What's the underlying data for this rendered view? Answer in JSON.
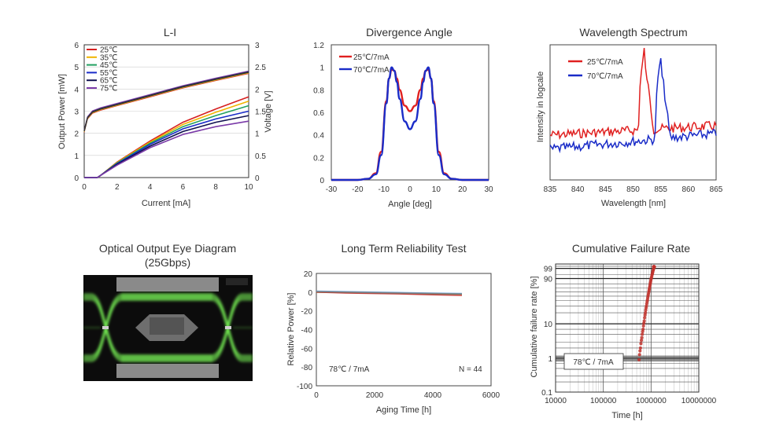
{
  "charts": {
    "li": {
      "title": "L-I",
      "xlabel": "Current [mA]",
      "ylabel_left": "Output Power [mW]",
      "ylabel_right": "Voltage [V]",
      "x_ticks": [
        "0",
        "2",
        "4",
        "6",
        "8",
        "10"
      ],
      "yl_ticks": [
        "0",
        "1",
        "2",
        "3",
        "4",
        "5",
        "6"
      ],
      "yr_ticks": [
        "0",
        "0.5",
        "1",
        "1.5",
        "2",
        "2.5",
        "3"
      ],
      "legend": [
        "25℃",
        "35℃",
        "45℃",
        "55℃",
        "65℃",
        "75℃"
      ]
    },
    "div": {
      "title": "Divergence Angle",
      "xlabel": "Angle [deg]",
      "x_ticks": [
        "-30",
        "-20",
        "-10",
        "0",
        "10",
        "20",
        "30"
      ],
      "y_ticks": [
        "0",
        "0.2",
        "0.4",
        "0.6",
        "0.8",
        "1",
        "1.2"
      ],
      "legend": [
        "25℃/7mA",
        "70℃/7mA"
      ]
    },
    "wl": {
      "title": "Wavelength Spectrum",
      "xlabel": "Wavelength [nm]",
      "ylabel": "Intensity in logcale",
      "x_ticks": [
        "835",
        "840",
        "845",
        "850",
        "855",
        "860",
        "865"
      ],
      "legend": [
        "25℃/7mA",
        "70℃/7mA"
      ]
    },
    "eye": {
      "title_line1": "Optical Output Eye Diagram",
      "title_line2": "(25Gbps)"
    },
    "ltr": {
      "title": "Long Term Reliability Test",
      "xlabel": "Aging Time [h]",
      "ylabel": "Relative Power [%]",
      "x_ticks": [
        "0",
        "2000",
        "4000",
        "6000"
      ],
      "y_ticks": [
        "20",
        "0",
        "-20",
        "-40",
        "-60",
        "-80",
        "-100"
      ],
      "cond": "78℃ / 7mA",
      "n": "N = 44"
    },
    "cfr": {
      "title": "Cumulative Failure Rate",
      "xlabel": "Time [h]",
      "ylabel": "Cumulative failure rate [%]",
      "x_ticks": [
        "10000",
        "100000",
        "1000000",
        "10000000"
      ],
      "y_ticks": [
        "99",
        "90",
        "10",
        "1",
        "0.1"
      ],
      "cond": "78℃ / 7mA"
    }
  },
  "colors": {
    "red": "#e02020",
    "blue": "#1a2cc8",
    "li_series": [
      "#d62020",
      "#f0b400",
      "#22a060",
      "#1a2cc8",
      "#101050",
      "#7a3aa8"
    ],
    "ltr_series": [
      "#e07020",
      "#4a9a4a",
      "#5a9ad8",
      "#c03030",
      "#808080"
    ],
    "cfr_point": "#c0302a",
    "eye_green": "#7dff5a"
  },
  "chart_data": [
    {
      "type": "line",
      "title": "L-I",
      "xlabel": "Current [mA]",
      "ylabel": "Output Power [mW]",
      "y2label": "Voltage [V]",
      "xlim": [
        0,
        10
      ],
      "ylim": [
        0,
        6
      ],
      "y2lim": [
        0,
        3
      ],
      "x": [
        0,
        0.8,
        1,
        2,
        4,
        6,
        8,
        10
      ],
      "series": [
        {
          "name": "25℃",
          "power": [
            0,
            0,
            0.1,
            0.7,
            1.65,
            2.5,
            3.1,
            3.65
          ]
        },
        {
          "name": "35℃",
          "power": [
            0,
            0,
            0.1,
            0.68,
            1.6,
            2.4,
            2.95,
            3.45
          ]
        },
        {
          "name": "45℃",
          "power": [
            0,
            0,
            0.1,
            0.66,
            1.55,
            2.3,
            2.8,
            3.25
          ]
        },
        {
          "name": "55℃",
          "power": [
            0,
            0,
            0.1,
            0.63,
            1.5,
            2.2,
            2.65,
            3.0
          ]
        },
        {
          "name": "65℃",
          "power": [
            0,
            0,
            0.1,
            0.6,
            1.42,
            2.08,
            2.5,
            2.8
          ]
        },
        {
          "name": "75℃",
          "power": [
            0,
            0,
            0.1,
            0.56,
            1.35,
            1.95,
            2.3,
            2.55
          ]
        }
      ],
      "voltage": {
        "x": [
          0,
          0.2,
          0.5,
          1,
          2,
          4,
          6,
          8,
          10
        ],
        "y": [
          1.05,
          1.35,
          1.48,
          1.55,
          1.65,
          1.85,
          2.05,
          2.22,
          2.38
        ]
      }
    },
    {
      "type": "line",
      "title": "Divergence Angle",
      "xlabel": "Angle [deg]",
      "xlim": [
        -30,
        30
      ],
      "ylim": [
        0,
        1.2
      ],
      "series": [
        {
          "name": "25℃/7mA",
          "x": [
            -30,
            -25,
            -20,
            -16,
            -13,
            -11,
            -9,
            -8,
            -7,
            -6,
            -5,
            -4,
            -2,
            0,
            2,
            4,
            5,
            6,
            7,
            8,
            9,
            11,
            13,
            16,
            20,
            25,
            30
          ],
          "y": [
            0,
            0,
            0,
            0.01,
            0.06,
            0.25,
            0.7,
            0.9,
            0.98,
            0.97,
            0.9,
            0.8,
            0.66,
            0.61,
            0.66,
            0.8,
            0.9,
            0.97,
            0.98,
            0.9,
            0.7,
            0.25,
            0.06,
            0.01,
            0,
            0,
            0
          ]
        },
        {
          "name": "70℃/7mA",
          "x": [
            -30,
            -25,
            -20,
            -16,
            -13,
            -11,
            -9,
            -8,
            -7,
            -6,
            -5,
            -4,
            -2,
            0,
            2,
            4,
            5,
            6,
            7,
            8,
            9,
            11,
            13,
            16,
            20,
            25,
            30
          ],
          "y": [
            0,
            0,
            0,
            0.01,
            0.05,
            0.22,
            0.68,
            0.9,
            1.0,
            0.97,
            0.87,
            0.72,
            0.52,
            0.45,
            0.52,
            0.72,
            0.87,
            0.97,
            1.0,
            0.9,
            0.68,
            0.22,
            0.05,
            0.01,
            0,
            0,
            0
          ]
        }
      ]
    },
    {
      "type": "line",
      "title": "Wavelength Spectrum",
      "xlabel": "Wavelength [nm]",
      "ylabel": "Intensity in logcale",
      "xlim": [
        835,
        865
      ],
      "series": [
        {
          "name": "25℃/7mA",
          "peak": 852.3
        },
        {
          "name": "70℃/7mA",
          "peak": 855.3
        }
      ]
    },
    {
      "type": "line",
      "title": "Long Term Reliability Test",
      "xlabel": "Aging Time [h]",
      "ylabel": "Relative Power [%]",
      "xlim": [
        0,
        6000
      ],
      "ylim": [
        -100,
        20
      ],
      "x": [
        0,
        1000,
        2000,
        3000,
        4000,
        5000
      ],
      "series": [
        {
          "values": [
            0,
            -0.5,
            -1,
            -1.5,
            -2,
            -2.5
          ]
        },
        {
          "values": [
            0,
            -0.3,
            -0.8,
            -1.2,
            -1.6,
            -2
          ]
        },
        {
          "values": [
            1,
            0.5,
            0,
            -0.5,
            -1,
            -1.5
          ]
        },
        {
          "values": [
            0,
            -1,
            -1.5,
            -2,
            -2.8,
            -3.5
          ]
        },
        {
          "values": [
            0.5,
            0,
            -0.5,
            -1,
            -1.5,
            -2
          ]
        }
      ],
      "annotations": [
        "78℃ / 7mA",
        "N = 44"
      ]
    },
    {
      "type": "scatter",
      "title": "Cumulative Failure Rate",
      "xlabel": "Time [h]",
      "ylabel": "Cumulative failure rate [%]",
      "x_scale": "log",
      "xlim": [
        10000,
        10000000
      ],
      "points": [
        {
          "x": 560000,
          "y": 0.9
        },
        {
          "x": 600000,
          "y": 2
        },
        {
          "x": 640000,
          "y": 4
        },
        {
          "x": 680000,
          "y": 7
        },
        {
          "x": 720000,
          "y": 12
        },
        {
          "x": 760000,
          "y": 20
        },
        {
          "x": 800000,
          "y": 30
        },
        {
          "x": 840000,
          "y": 42
        },
        {
          "x": 880000,
          "y": 55
        },
        {
          "x": 920000,
          "y": 68
        },
        {
          "x": 960000,
          "y": 80
        },
        {
          "x": 1000000,
          "y": 89
        },
        {
          "x": 1050000,
          "y": 95
        },
        {
          "x": 1100000,
          "y": 98
        },
        {
          "x": 1150000,
          "y": 99.4
        }
      ],
      "annotations": [
        "78℃ / 7mA"
      ]
    }
  ]
}
